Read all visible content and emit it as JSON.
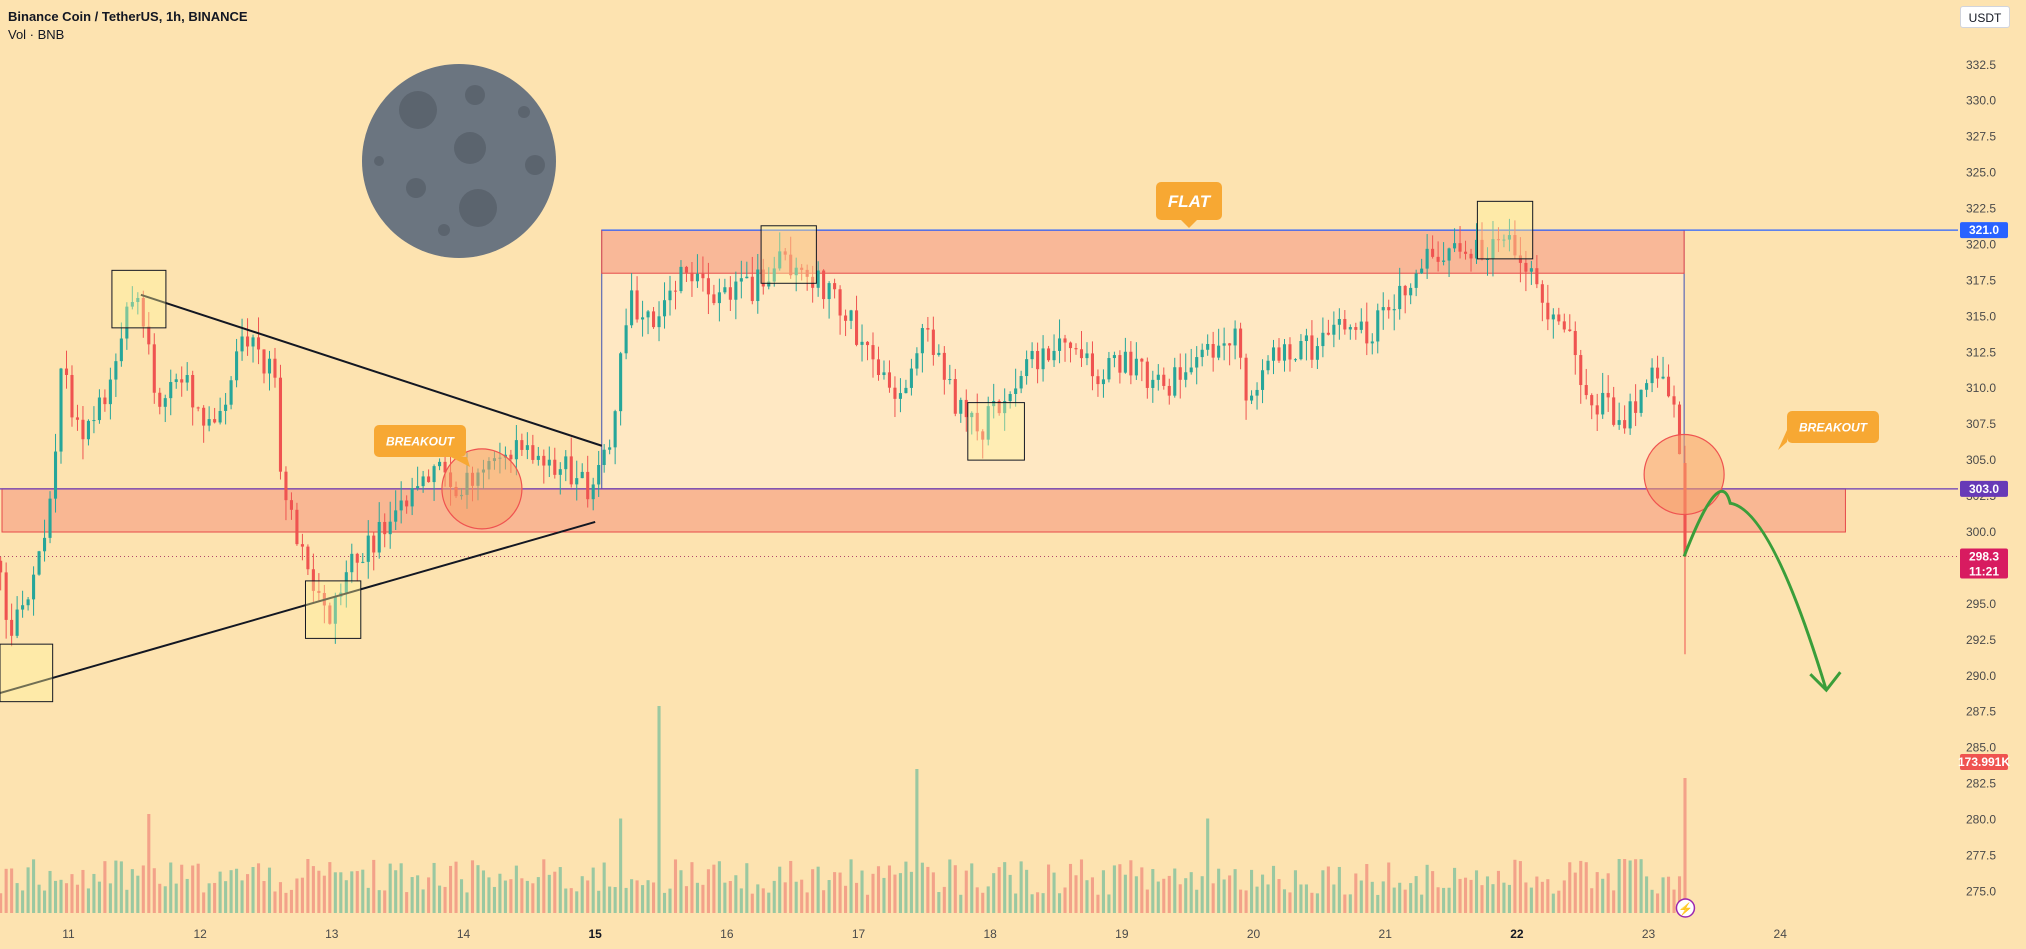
{
  "header": {
    "title": "Binance Coin / TetherUS, 1h, BINANCE",
    "volume_label": "Vol · BNB"
  },
  "currency_button": "USDT",
  "colors": {
    "background": "#fde3b0",
    "bull": "#26a69a",
    "bear": "#ef5350",
    "volume_bull": "#8fc4a0",
    "volume_bear": "#f29a85",
    "zone_fill": "#f7a889",
    "resistance_tag": "#2962ff",
    "support_tag": "#673ab7",
    "price_tag": "#d81b60",
    "volume_tag": "#ef5350",
    "callout": "#f7a833",
    "projection_arrow": "#3a9e3a",
    "moon": "#6b7580"
  },
  "icons": [
    "moon-icon",
    "lightning-icon"
  ],
  "annotations": {
    "flat": "FLAT",
    "breakout_left": "BREAKOUT",
    "breakout_right": "BREAKOUT"
  },
  "price_tags": {
    "resistance": "321.0",
    "support": "303.0",
    "last_price": "298.3",
    "countdown": "11:21",
    "volume": "173.991K"
  },
  "chart_data": {
    "type": "candlestick",
    "symbol": "BNBUSDT",
    "interval": "1h",
    "exchange": "BINANCE",
    "ylim": [
      273.5,
      334.5
    ],
    "y_ticks": [
      "332.5",
      "330.0",
      "327.5",
      "325.0",
      "322.5",
      "320.0",
      "317.5",
      "315.0",
      "312.5",
      "310.0",
      "307.5",
      "305.0",
      "302.5",
      "300.0",
      "297.5",
      "295.0",
      "292.5",
      "290.0",
      "287.5",
      "285.0",
      "282.5",
      "280.0",
      "277.5",
      "275.0"
    ],
    "x_ticks": [
      "11",
      "12",
      "13",
      "14",
      "15",
      "16",
      "17",
      "18",
      "19",
      "20",
      "21",
      "22",
      "23",
      "24"
    ],
    "bold_x_ticks": [
      "15",
      "22"
    ],
    "x_range_days": [
      10.48,
      25.35
    ],
    "levels": {
      "resistance_top": 321.0,
      "resistance_bottom": 318.0,
      "support_top": 303.0,
      "support_bottom": 300.0,
      "last_price": 298.3
    },
    "candle_anchors": [
      [
        10.48,
        298
      ],
      [
        10.55,
        292
      ],
      [
        10.68,
        296
      ],
      [
        10.85,
        301
      ],
      [
        10.95,
        311
      ],
      [
        11.1,
        306
      ],
      [
        11.32,
        310
      ],
      [
        11.45,
        316
      ],
      [
        11.58,
        315
      ],
      [
        11.68,
        308
      ],
      [
        11.85,
        311
      ],
      [
        12.05,
        307
      ],
      [
        12.2,
        310
      ],
      [
        12.35,
        314
      ],
      [
        12.48,
        311
      ],
      [
        12.55,
        312
      ],
      [
        12.62,
        303
      ],
      [
        12.75,
        299
      ],
      [
        12.88,
        296
      ],
      [
        13.0,
        294
      ],
      [
        13.12,
        297
      ],
      [
        13.28,
        299
      ],
      [
        13.45,
        301
      ],
      [
        13.62,
        303
      ],
      [
        13.8,
        304
      ],
      [
        13.98,
        303
      ],
      [
        14.15,
        304
      ],
      [
        14.35,
        306
      ],
      [
        14.52,
        306
      ],
      [
        14.68,
        305
      ],
      [
        14.85,
        304
      ],
      [
        14.97,
        302
      ],
      [
        15.1,
        306
      ],
      [
        15.25,
        316
      ],
      [
        15.45,
        315
      ],
      [
        15.58,
        318
      ],
      [
        15.78,
        317
      ],
      [
        15.98,
        316
      ],
      [
        16.18,
        317
      ],
      [
        16.4,
        319
      ],
      [
        16.6,
        318
      ],
      [
        16.85,
        316
      ],
      [
        17.05,
        313
      ],
      [
        17.3,
        309
      ],
      [
        17.5,
        314
      ],
      [
        17.72,
        309
      ],
      [
        17.92,
        307
      ],
      [
        18.15,
        310
      ],
      [
        18.35,
        312
      ],
      [
        18.55,
        314
      ],
      [
        18.8,
        311
      ],
      [
        19.05,
        312
      ],
      [
        19.3,
        310
      ],
      [
        19.6,
        312
      ],
      [
        19.85,
        314
      ],
      [
        19.95,
        309
      ],
      [
        20.2,
        313
      ],
      [
        20.45,
        313
      ],
      [
        20.68,
        315
      ],
      [
        20.9,
        314
      ],
      [
        21.1,
        316
      ],
      [
        21.28,
        319
      ],
      [
        21.5,
        319
      ],
      [
        21.72,
        320
      ],
      [
        21.9,
        320
      ],
      [
        22.05,
        319
      ],
      [
        22.2,
        316
      ],
      [
        22.4,
        313
      ],
      [
        22.6,
        309
      ],
      [
        22.8,
        308
      ],
      [
        22.98,
        310
      ],
      [
        23.12,
        311
      ],
      [
        23.22,
        308
      ],
      [
        23.28,
        298.3
      ]
    ],
    "volume": {
      "last_value": "173.991K",
      "spikes": [
        {
          "day": 15.5,
          "relative": 0.92
        },
        {
          "day": 15.2,
          "relative": 0.42
        },
        {
          "day": 17.45,
          "relative": 0.64
        },
        {
          "day": 19.65,
          "relative": 0.42
        },
        {
          "day": 23.3,
          "relative": 0.6
        },
        {
          "day": 11.6,
          "relative": 0.44
        },
        {
          "day": 22.8,
          "relative": 0.24
        }
      ]
    },
    "trendlines": [
      {
        "from": [
          11.55,
          316.5
        ],
        "to": [
          15.05,
          306.0
        ]
      },
      {
        "from": [
          10.48,
          288.8
        ],
        "to": [
          15.0,
          300.7
        ]
      }
    ],
    "highlight_boxes": [
      {
        "day_from": 10.48,
        "day_to": 10.88,
        "price_from": 288.2,
        "price_to": 292.2
      },
      {
        "day_from": 11.33,
        "day_to": 11.74,
        "price_from": 314.2,
        "price_to": 318.2
      },
      {
        "day_from": 12.8,
        "day_to": 13.22,
        "price_from": 292.6,
        "price_to": 296.6
      },
      {
        "day_from": 16.26,
        "day_to": 16.68,
        "price_from": 317.3,
        "price_to": 321.3
      },
      {
        "day_from": 17.83,
        "day_to": 18.26,
        "price_from": 305.0,
        "price_to": 309.0
      },
      {
        "day_from": 21.7,
        "day_to": 22.12,
        "price_from": 319.0,
        "price_to": 323.0
      }
    ],
    "flat_range": {
      "day_from": 15.05,
      "day_to": 23.27,
      "price_from": 303.0,
      "price_to": 321.0
    },
    "breakout_circles": [
      {
        "day": 14.14,
        "price": 303.0
      },
      {
        "day": 23.27,
        "price": 304.0
      }
    ],
    "projection": {
      "start": [
        23.27,
        298.3
      ],
      "peak": [
        23.62,
        302.0
      ],
      "end": [
        24.35,
        289.0
      ]
    }
  }
}
